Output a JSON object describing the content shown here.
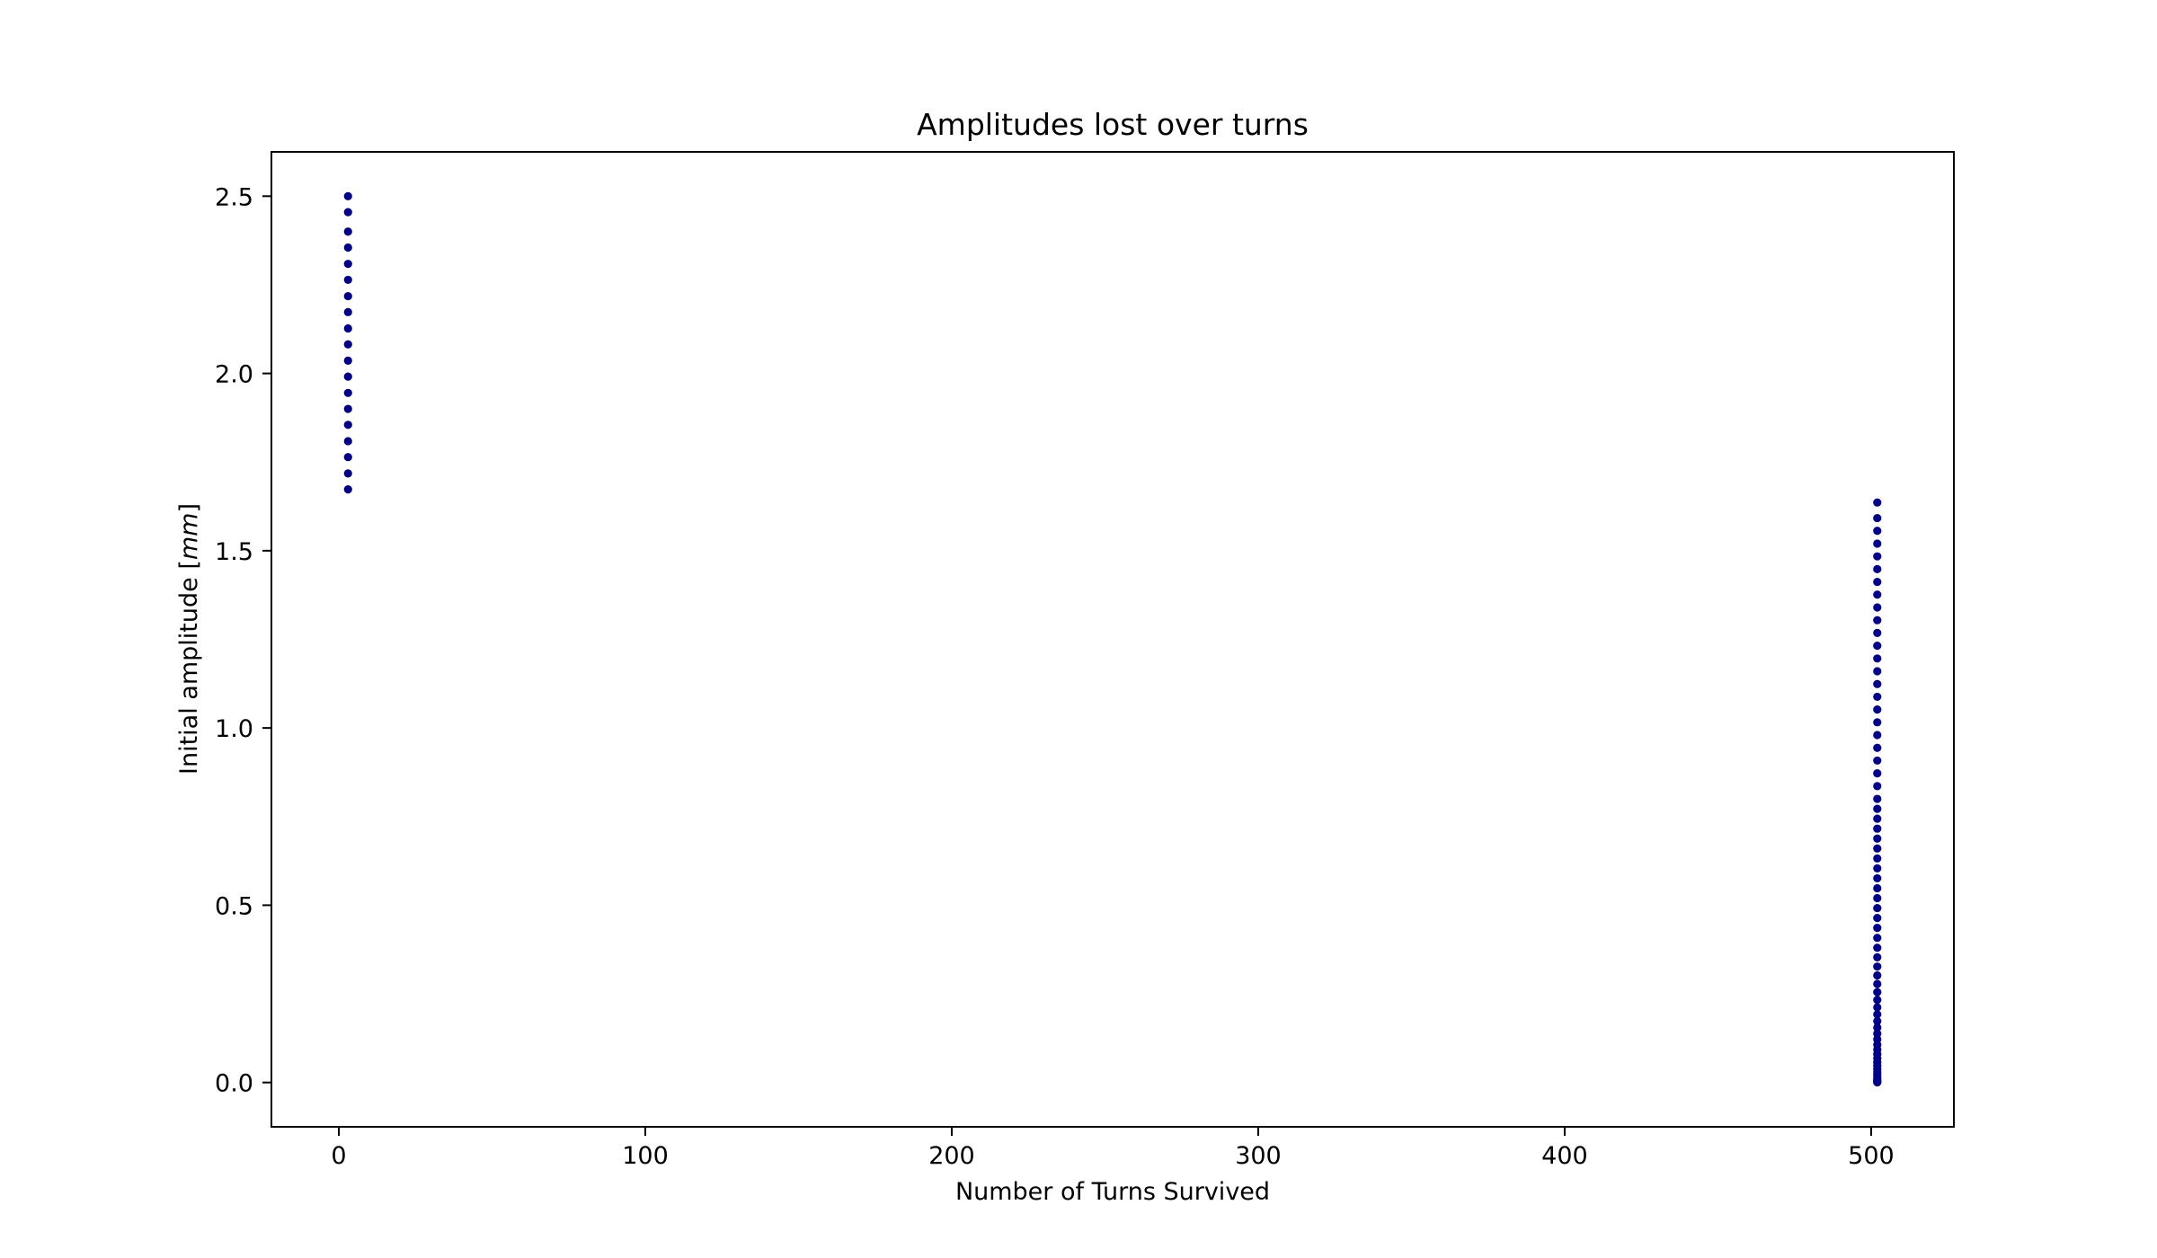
{
  "chart_data": {
    "type": "scatter",
    "title": "Amplitudes lost over turns",
    "xlabel": "Number of Turns Survived",
    "ylabel": "Initial amplitude [mm]",
    "ylabel_parts": {
      "prefix": "Initial amplitude [",
      "unit": "mm",
      "suffix": "]"
    },
    "xlim": [
      -22,
      527
    ],
    "ylim": [
      -0.125,
      2.625
    ],
    "xticks": [
      0,
      100,
      200,
      300,
      400,
      500
    ],
    "xtick_labels": [
      "0",
      "100",
      "200",
      "300",
      "400",
      "500"
    ],
    "yticks": [
      0.0,
      0.5,
      1.0,
      1.5,
      2.0,
      2.5
    ],
    "ytick_labels": [
      "0.0",
      "0.5",
      "1.0",
      "1.5",
      "2.0",
      "2.5"
    ],
    "grid": false,
    "marker_color": "#00008b",
    "series": [
      {
        "x_value": 3,
        "y_values": [
          1.673,
          1.718,
          1.764,
          1.809,
          1.855,
          1.9,
          1.945,
          1.991,
          2.036,
          2.082,
          2.127,
          2.173,
          2.218,
          2.264,
          2.309,
          2.355,
          2.4,
          2.455,
          2.5
        ]
      },
      {
        "x_value": 502,
        "y_values": [
          0.0005,
          0.0015,
          0.003,
          0.005,
          0.008,
          0.012,
          0.017,
          0.023,
          0.03,
          0.038,
          0.047,
          0.057,
          0.068,
          0.08,
          0.093,
          0.107,
          0.122,
          0.138,
          0.155,
          0.173,
          0.192,
          0.212,
          0.233,
          0.255,
          0.278,
          0.302,
          0.327,
          0.353,
          0.38,
          0.408,
          0.436,
          0.464,
          0.492,
          0.52,
          0.548,
          0.576,
          0.604,
          0.632,
          0.66,
          0.688,
          0.716,
          0.744,
          0.772,
          0.8,
          0.836,
          0.872,
          0.908,
          0.944,
          0.98,
          1.016,
          1.052,
          1.088,
          1.124,
          1.16,
          1.196,
          1.232,
          1.268,
          1.304,
          1.34,
          1.376,
          1.412,
          1.448,
          1.484,
          1.52,
          1.556,
          1.592,
          1.636
        ]
      }
    ]
  }
}
